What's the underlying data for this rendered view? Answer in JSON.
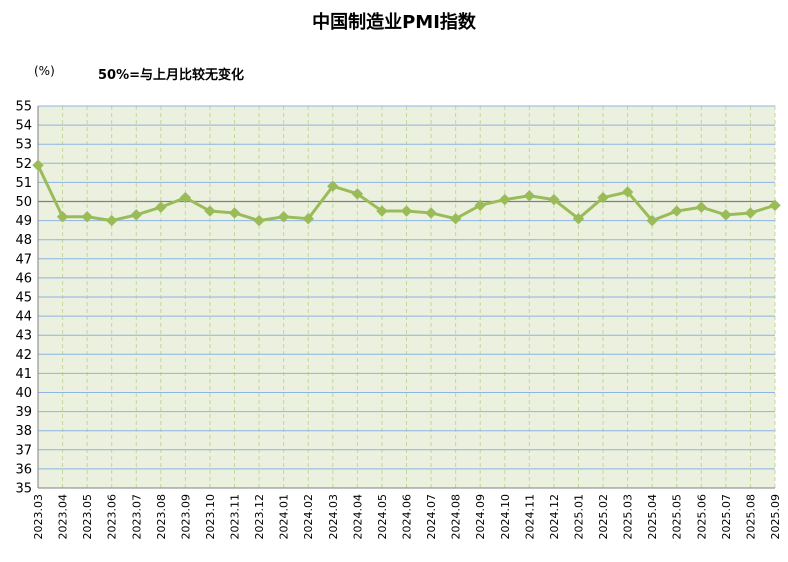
{
  "title": "中国制造业PMI指数",
  "unit_label": "(%)",
  "note": "50%=与上月比较无变化",
  "colors": {
    "plot_bg": "#ebf1de",
    "line": "#9bbb59",
    "grid_h": "#8db4e2",
    "grid_v": "#c4d79b",
    "ref_line": "#808080"
  },
  "chart_data": {
    "type": "line",
    "title": "中国制造业PMI指数",
    "ylabel": "(%)",
    "ylim": [
      35,
      55
    ],
    "y_ticks": [
      "35",
      "36",
      "37",
      "38",
      "39",
      "40",
      "41",
      "42",
      "43",
      "44",
      "45",
      "46",
      "47",
      "48",
      "49",
      "50",
      "51",
      "52",
      "53",
      "54",
      "55"
    ],
    "reference_line": 50,
    "grid": true,
    "legend": "none",
    "categories": [
      "2023.03",
      "2023.04",
      "2023.05",
      "2023.06",
      "2023.07",
      "2023.08",
      "2023.09",
      "2023.10",
      "2023.11",
      "2023.12",
      "2024.01",
      "2024.02",
      "2024.03",
      "2024.04",
      "2024.05",
      "2024.06",
      "2024.07",
      "2024.08",
      "2024.09",
      "2024.10",
      "2024.11",
      "2024.12",
      "2025.01",
      "2025.02",
      "2025.03",
      "2025.04",
      "2025.05",
      "2025.06",
      "2025.07",
      "2025.08",
      "2025.09"
    ],
    "values": [
      51.9,
      49.2,
      49.2,
      49.0,
      49.3,
      49.7,
      50.2,
      49.5,
      49.4,
      49.0,
      49.2,
      49.1,
      50.8,
      50.4,
      49.5,
      49.5,
      49.4,
      49.1,
      49.8,
      50.1,
      50.3,
      50.1,
      49.1,
      50.2,
      50.5,
      49.0,
      49.5,
      49.7,
      49.3,
      49.4,
      49.8
    ]
  }
}
